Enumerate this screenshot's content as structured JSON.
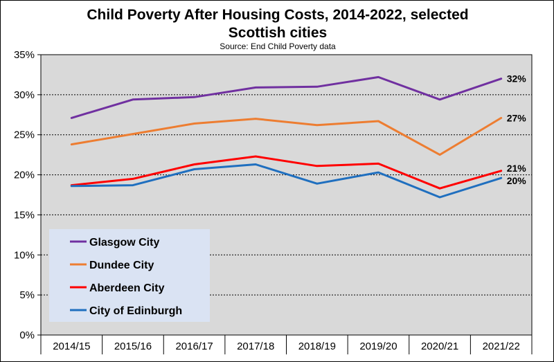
{
  "chart_data": {
    "type": "line",
    "title_line1": "Child Poverty After Housing Costs, 2014-2022, selected",
    "title_line2": "Scottish cities",
    "subtitle": "Source: End Child Poverty data",
    "categories": [
      "2014/15",
      "2015/16",
      "2016/17",
      "2017/18",
      "2018/19",
      "2019/20",
      "2020/21",
      "2021/22"
    ],
    "y_ticks": [
      "0%",
      "5%",
      "10%",
      "15%",
      "20%",
      "25%",
      "30%",
      "35%"
    ],
    "ylim": [
      0,
      35
    ],
    "grid": true,
    "legend_position": "bottom-left",
    "series": [
      {
        "name": "Glasgow City",
        "color": "#7030A0",
        "values": [
          27.1,
          29.4,
          29.7,
          30.9,
          31.0,
          32.2,
          29.4,
          32.0
        ],
        "end_label": "32%"
      },
      {
        "name": "Dundee City",
        "color": "#ED7D31",
        "values": [
          23.8,
          25.1,
          26.4,
          27.0,
          26.2,
          26.7,
          22.5,
          27.1
        ],
        "end_label": "27%"
      },
      {
        "name": "Aberdeen City",
        "color": "#FF0000",
        "values": [
          18.7,
          19.5,
          21.3,
          22.3,
          21.1,
          21.4,
          18.3,
          20.5
        ],
        "end_label": "21%"
      },
      {
        "name": "City of Edinburgh",
        "color": "#1F6FBF",
        "values": [
          18.6,
          18.7,
          20.7,
          21.3,
          18.9,
          20.3,
          17.2,
          19.6
        ],
        "end_label": "20%"
      }
    ],
    "colors": {
      "plot_bg": "#D9D9D9",
      "legend_bg": "#DAE3F3",
      "grid": "#000000"
    }
  }
}
